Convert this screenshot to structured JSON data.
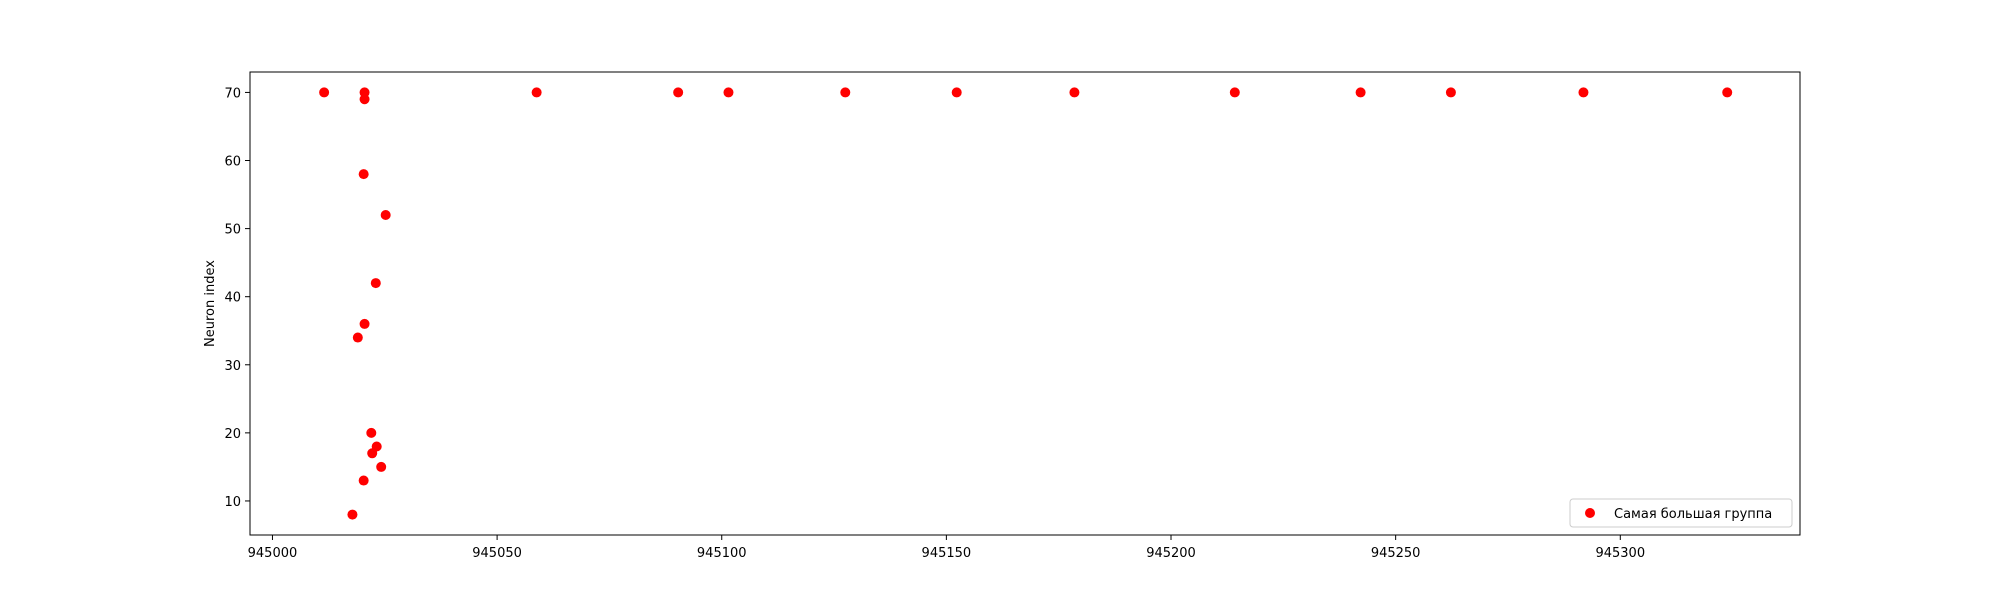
{
  "chart_data": {
    "type": "scatter",
    "title": "",
    "xlabel": "",
    "ylabel": "Neuron index",
    "xlim": [
      944995,
      945340
    ],
    "ylim": [
      5,
      73
    ],
    "x_ticks": [
      945000,
      945050,
      945100,
      945150,
      945200,
      945250,
      945300
    ],
    "x_tick_labels": [
      "945000",
      "945050",
      "945100",
      "945150",
      "945200",
      "945250",
      "945300"
    ],
    "y_ticks": [
      10,
      20,
      30,
      40,
      50,
      60,
      70
    ],
    "y_tick_labels": [
      "10",
      "20",
      "30",
      "40",
      "50",
      "60",
      "70"
    ],
    "grid": false,
    "legend": {
      "position": "lower-right",
      "entries": [
        "Самая большая группа"
      ]
    },
    "series": [
      {
        "name": "Самая большая группа",
        "color": "#ff0000",
        "marker": "circle",
        "points": [
          {
            "x": 945011.5,
            "y": 70
          },
          {
            "x": 945020.5,
            "y": 70
          },
          {
            "x": 945020.5,
            "y": 69
          },
          {
            "x": 945020.3,
            "y": 58
          },
          {
            "x": 945025.2,
            "y": 52
          },
          {
            "x": 945023.0,
            "y": 42
          },
          {
            "x": 945020.5,
            "y": 36
          },
          {
            "x": 945019.0,
            "y": 34
          },
          {
            "x": 945022.0,
            "y": 20
          },
          {
            "x": 945023.2,
            "y": 18
          },
          {
            "x": 945022.2,
            "y": 17
          },
          {
            "x": 945024.2,
            "y": 15
          },
          {
            "x": 945020.3,
            "y": 13
          },
          {
            "x": 945017.8,
            "y": 8
          },
          {
            "x": 945058.8,
            "y": 70
          },
          {
            "x": 945090.3,
            "y": 70
          },
          {
            "x": 945101.5,
            "y": 70
          },
          {
            "x": 945127.5,
            "y": 70
          },
          {
            "x": 945152.3,
            "y": 70
          },
          {
            "x": 945178.5,
            "y": 70
          },
          {
            "x": 945214.2,
            "y": 70
          },
          {
            "x": 945242.2,
            "y": 70
          },
          {
            "x": 945262.3,
            "y": 70
          },
          {
            "x": 945291.8,
            "y": 70
          },
          {
            "x": 945323.8,
            "y": 70
          }
        ]
      }
    ]
  }
}
